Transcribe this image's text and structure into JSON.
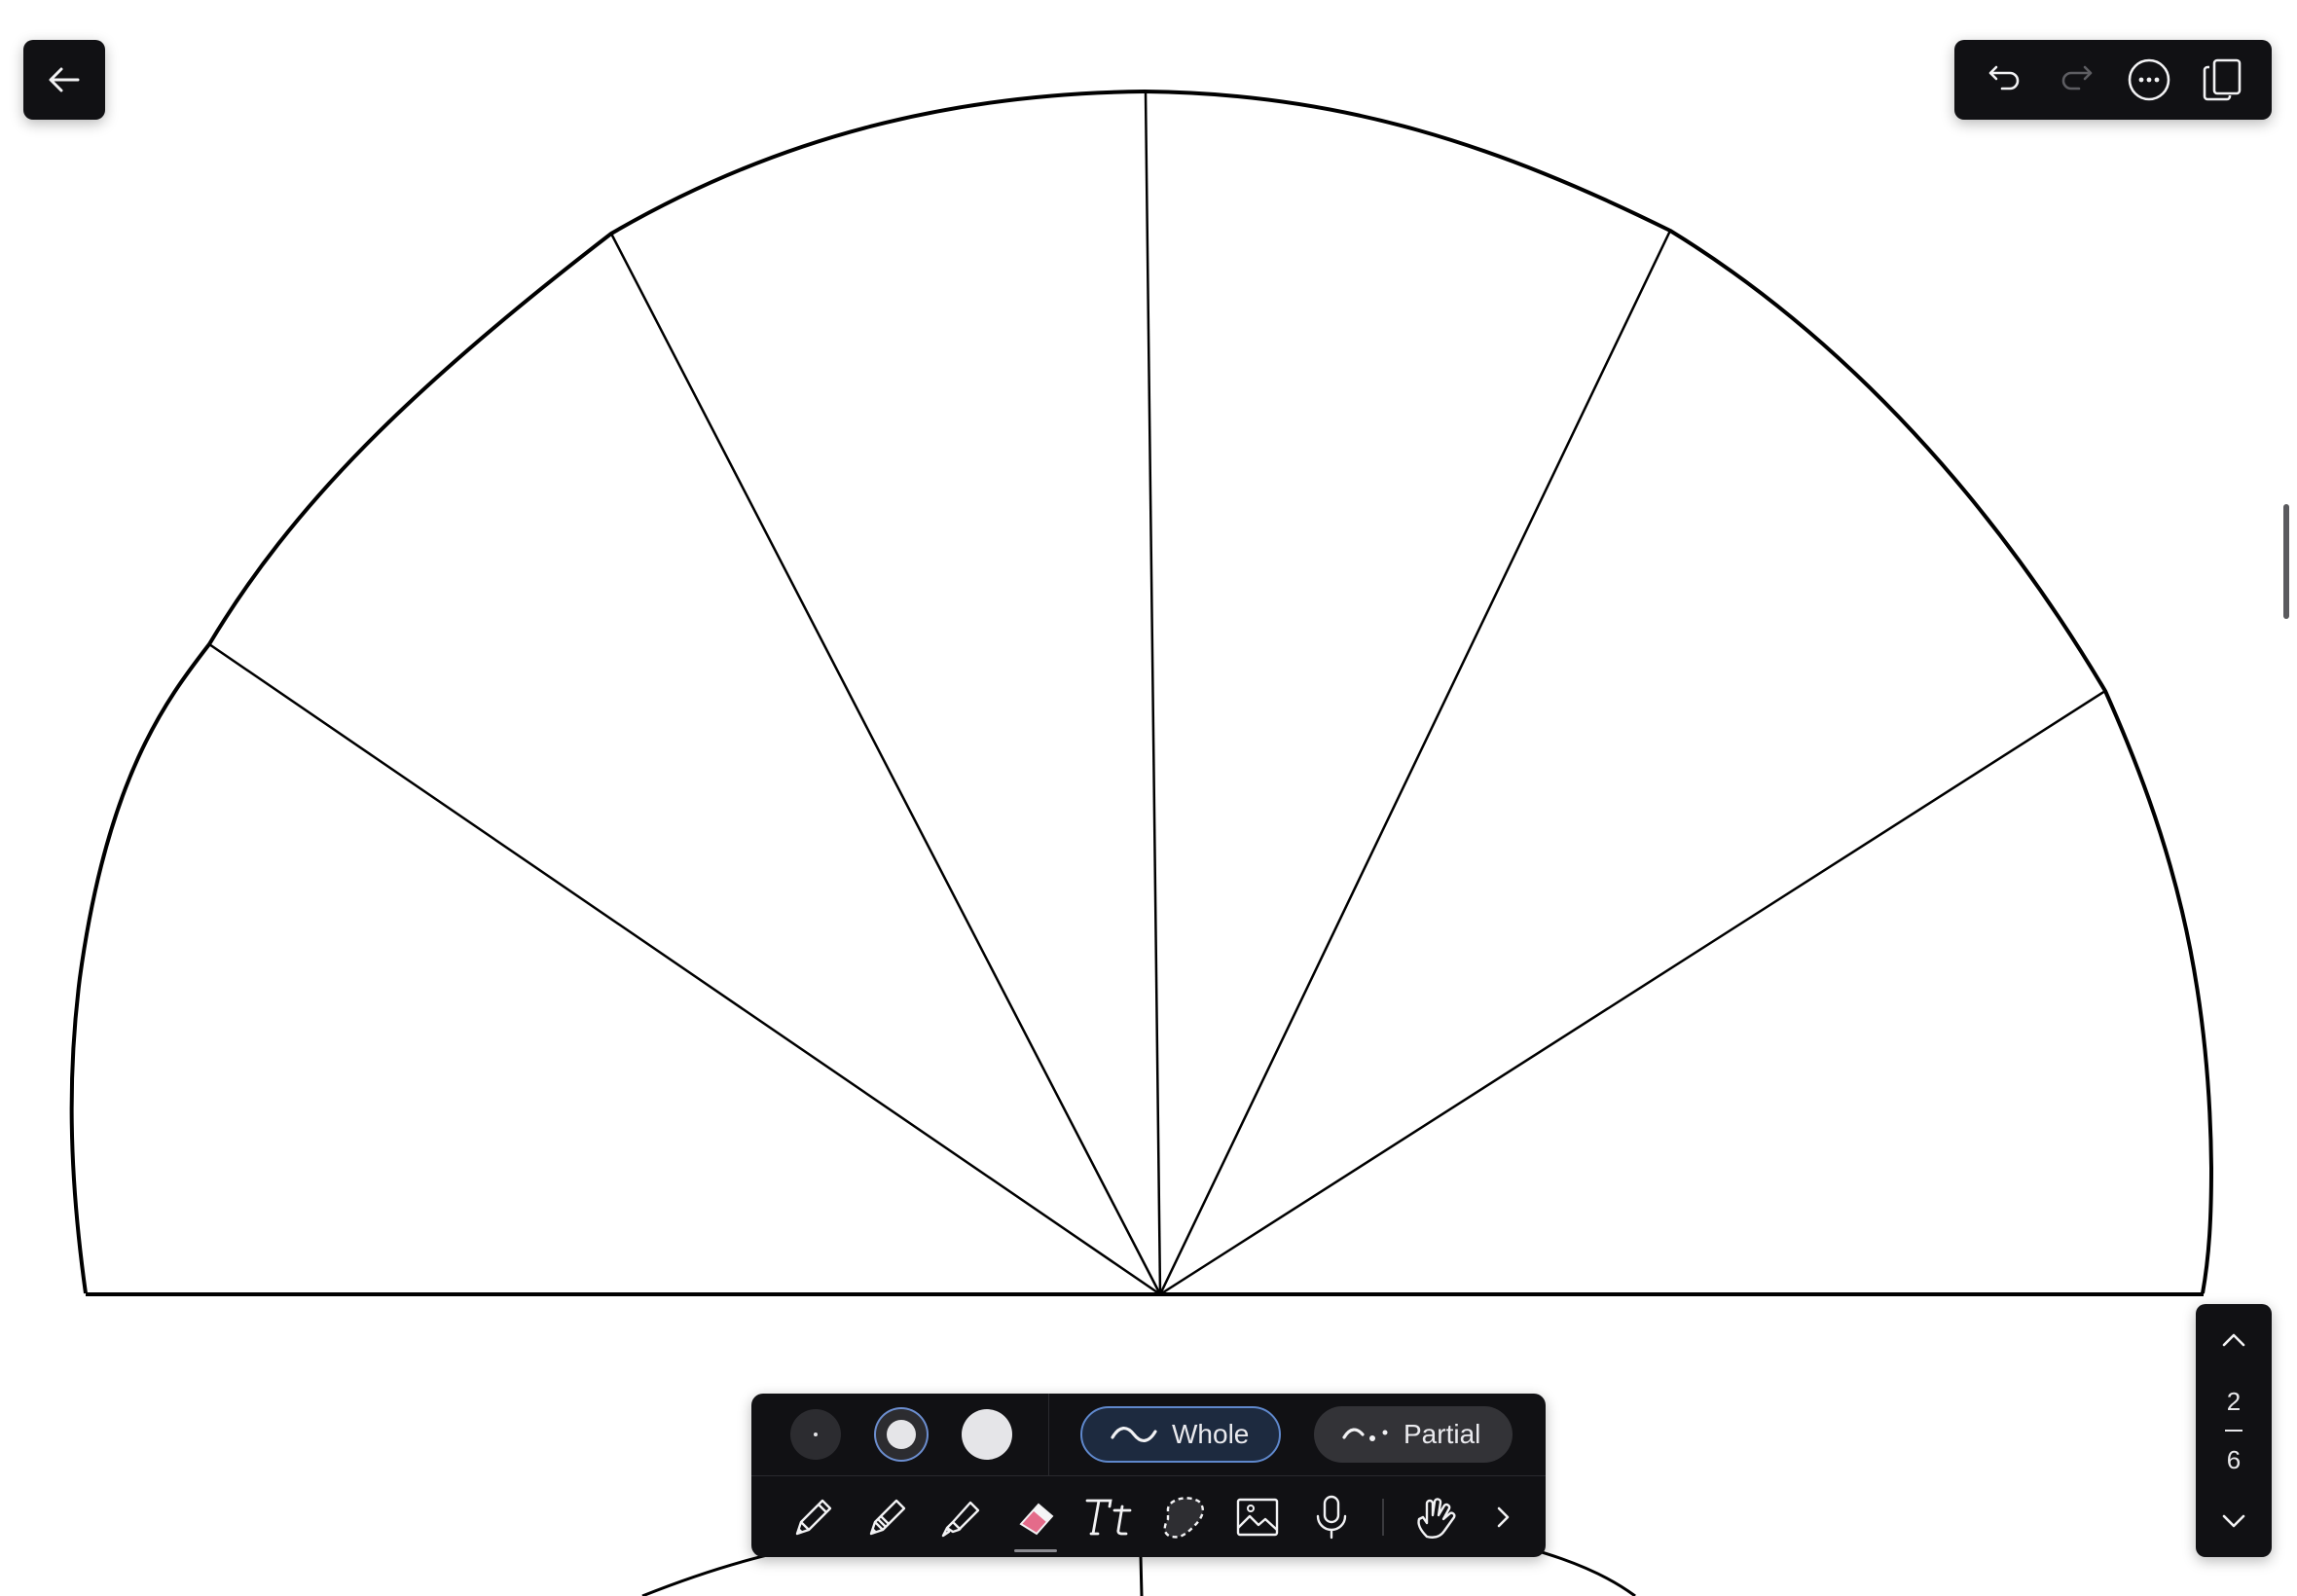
{
  "app": {
    "canvas": {
      "name": "protractor-drawing"
    },
    "header": {
      "back_icon": "arrow-left-icon",
      "toolbar": {
        "undo_icon": "undo-icon",
        "redo_icon": "redo-icon",
        "redo_enabled": false,
        "more_icon": "more-icon",
        "pages_icon": "pages-icon"
      }
    },
    "page_nav": {
      "current": "2",
      "total": "6",
      "up_icon": "chevron-up-icon",
      "down_icon": "chevron-down-icon"
    },
    "eraser_options": {
      "sizes": [
        "small",
        "medium",
        "large"
      ],
      "selected_size": "medium",
      "modes": [
        {
          "label": "Whole",
          "icon": "wave-icon",
          "selected": true
        },
        {
          "label": "Partial",
          "icon": "partial-wave-icon",
          "selected": false
        }
      ]
    },
    "tools": [
      {
        "name": "pen",
        "icon": "pen-icon"
      },
      {
        "name": "pencil",
        "icon": "pencil-icon"
      },
      {
        "name": "highlighter",
        "icon": "highlighter-icon"
      },
      {
        "name": "eraser",
        "icon": "eraser-icon",
        "selected": true
      },
      {
        "name": "text",
        "icon": "text-icon"
      },
      {
        "name": "lasso",
        "icon": "lasso-icon"
      },
      {
        "name": "image",
        "icon": "image-icon"
      },
      {
        "name": "audio",
        "icon": "microphone-icon"
      },
      {
        "name": "touch",
        "icon": "hand-icon"
      },
      {
        "name": "expand",
        "icon": "chevron-right-icon"
      }
    ],
    "colors": {
      "toolbar_bg": "#111114",
      "accent": "#5f88cc",
      "eraser_pink": "#e46b8a",
      "ink": "#000000"
    }
  }
}
